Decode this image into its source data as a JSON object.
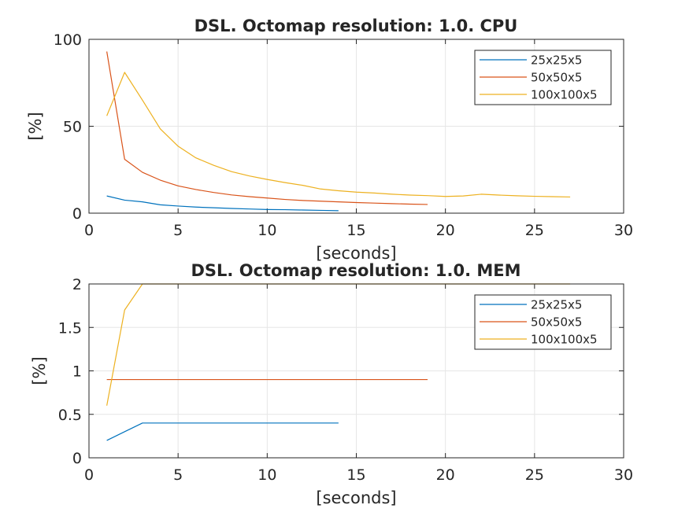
{
  "chart_data": [
    {
      "type": "line",
      "title": "DSL. Octomap resolution: 1.0. CPU",
      "xlabel": "[seconds]",
      "ylabel": "[%]",
      "xlim": [
        0,
        30
      ],
      "ylim": [
        0,
        100
      ],
      "xticks": [
        0,
        5,
        10,
        15,
        20,
        25,
        30
      ],
      "yticks": [
        0,
        50,
        100
      ],
      "grid": true,
      "legend_position": "top-right",
      "series": [
        {
          "name": "25x25x5",
          "color": "#0072BD",
          "x": [
            1,
            2,
            3,
            4,
            5,
            6,
            7,
            8,
            9,
            10,
            11,
            12,
            13,
            14
          ],
          "y": [
            9.9,
            7.5,
            6.5,
            4.8,
            4.1,
            3.5,
            3.1,
            2.7,
            2.4,
            2.1,
            2.0,
            1.8,
            1.6,
            1.4
          ]
        },
        {
          "name": "50x50x5",
          "color": "#D95319",
          "x": [
            1,
            2,
            3,
            4,
            5,
            6,
            7,
            8,
            9,
            10,
            11,
            12,
            13,
            14,
            15,
            16,
            17,
            18,
            19
          ],
          "y": [
            93,
            31,
            23.5,
            19,
            15.7,
            13.6,
            11.9,
            10.5,
            9.5,
            8.7,
            7.9,
            7.3,
            6.9,
            6.5,
            6.1,
            5.8,
            5.5,
            5.2,
            5.0
          ]
        },
        {
          "name": "100x100x5",
          "color": "#EDB120",
          "x": [
            1,
            2,
            3,
            4,
            5,
            6,
            7,
            8,
            9,
            10,
            11,
            12,
            13,
            14,
            15,
            16,
            17,
            18,
            19,
            20,
            21,
            22,
            23,
            24,
            25,
            26,
            27
          ],
          "y": [
            56,
            81,
            65,
            48.5,
            38.5,
            31.8,
            27.5,
            23.9,
            21.4,
            19.4,
            17.6,
            16.0,
            13.9,
            12.9,
            12.1,
            11.6,
            10.9,
            10.4,
            10.1,
            9.6,
            9.9,
            10.9,
            10.4,
            10.0,
            9.7,
            9.5,
            9.3
          ]
        }
      ]
    },
    {
      "type": "line",
      "title": "DSL. Octomap resolution: 1.0. MEM",
      "xlabel": "[seconds]",
      "ylabel": "[%]",
      "xlim": [
        0,
        30
      ],
      "ylim": [
        0,
        2
      ],
      "xticks": [
        0,
        5,
        10,
        15,
        20,
        25,
        30
      ],
      "yticks": [
        0,
        0.5,
        1,
        1.5,
        2
      ],
      "grid": true,
      "legend_position": "top-right",
      "series": [
        {
          "name": "25x25x5",
          "color": "#0072BD",
          "x": [
            1,
            2,
            3,
            4,
            5,
            6,
            7,
            8,
            9,
            10,
            11,
            12,
            13,
            14
          ],
          "y": [
            0.2,
            0.3,
            0.4,
            0.4,
            0.4,
            0.4,
            0.4,
            0.4,
            0.4,
            0.4,
            0.4,
            0.4,
            0.4,
            0.4
          ]
        },
        {
          "name": "50x50x5",
          "color": "#D95319",
          "x": [
            1,
            2,
            3,
            4,
            5,
            6,
            7,
            8,
            9,
            10,
            11,
            12,
            13,
            14,
            15,
            16,
            17,
            18,
            19
          ],
          "y": [
            0.9,
            0.9,
            0.9,
            0.9,
            0.9,
            0.9,
            0.9,
            0.9,
            0.9,
            0.9,
            0.9,
            0.9,
            0.9,
            0.9,
            0.9,
            0.9,
            0.9,
            0.9,
            0.9
          ]
        },
        {
          "name": "100x100x5",
          "color": "#EDB120",
          "x": [
            1,
            2,
            3,
            4,
            5,
            6,
            7,
            8,
            9,
            10,
            11,
            12,
            13,
            14,
            15,
            16,
            17,
            18,
            19,
            20,
            21,
            22,
            23,
            24,
            25,
            26,
            27
          ],
          "y": [
            0.6,
            1.7,
            2.0,
            2.0,
            2.0,
            2.0,
            2.0,
            2.0,
            2.0,
            2.0,
            2.0,
            2.0,
            2.0,
            2.0,
            2.0,
            2.0,
            2.0,
            2.0,
            2.0,
            2.0,
            2.0,
            2.0,
            2.0,
            2.0,
            2.0,
            2.0,
            2.0
          ]
        }
      ]
    }
  ]
}
